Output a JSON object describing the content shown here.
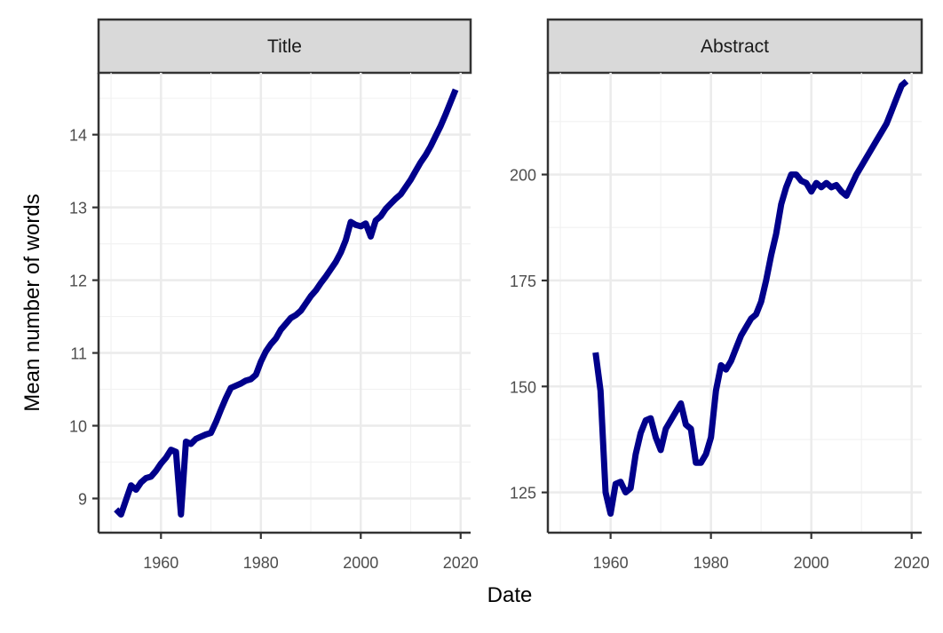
{
  "chart_data": {
    "type": "line",
    "xlabel": "Date",
    "ylabel": "Mean number of words",
    "line_color": "#00008b",
    "grid": true,
    "panels": [
      {
        "strip": "Title",
        "xlim": [
          1947.5,
          2022
        ],
        "ylim": [
          8.53,
          14.85
        ],
        "x_ticks": [
          1960,
          1980,
          2000,
          2020
        ],
        "y_ticks": [
          9,
          10,
          11,
          12,
          13,
          14
        ],
        "series": [
          {
            "x": [
              1951,
              1952,
              1953,
              1954,
              1955,
              1956,
              1957,
              1958,
              1959,
              1960,
              1961,
              1962,
              1963,
              1964,
              1965,
              1966,
              1967,
              1968,
              1969,
              1970,
              1971,
              1972,
              1973,
              1974,
              1975,
              1976,
              1977,
              1978,
              1979,
              1980,
              1981,
              1982,
              1983,
              1984,
              1985,
              1986,
              1987,
              1988,
              1989,
              1990,
              1991,
              1992,
              1993,
              1994,
              1995,
              1996,
              1997,
              1998,
              1999,
              2000,
              2001,
              2002,
              2003,
              2004,
              2005,
              2006,
              2007,
              2008,
              2009,
              2010,
              2011,
              2012,
              2013,
              2014,
              2015,
              2016,
              2017,
              2018,
              2019
            ],
            "y": [
              8.85,
              8.78,
              8.98,
              9.18,
              9.12,
              9.22,
              9.28,
              9.3,
              9.38,
              9.48,
              9.56,
              9.67,
              9.64,
              8.78,
              9.78,
              9.75,
              9.82,
              9.85,
              9.88,
              9.9,
              10.05,
              10.22,
              10.38,
              10.52,
              10.55,
              10.58,
              10.62,
              10.64,
              10.7,
              10.88,
              11.02,
              11.12,
              11.2,
              11.32,
              11.4,
              11.48,
              11.52,
              11.58,
              11.68,
              11.78,
              11.86,
              11.96,
              12.05,
              12.15,
              12.25,
              12.38,
              12.55,
              12.8,
              12.76,
              12.74,
              12.78,
              12.6,
              12.82,
              12.88,
              12.98,
              13.05,
              13.12,
              13.18,
              13.28,
              13.38,
              13.5,
              13.62,
              13.72,
              13.84,
              13.98,
              14.12,
              14.28,
              14.45,
              14.62
            ]
          }
        ]
      },
      {
        "strip": "Abstract",
        "xlim": [
          1947.5,
          2022
        ],
        "ylim": [
          115.5,
          224
        ],
        "x_ticks": [
          1960,
          1980,
          2000,
          2020
        ],
        "y_ticks": [
          125,
          150,
          175,
          200
        ],
        "series": [
          {
            "x": [
              1957,
              1958,
              1959,
              1960,
              1961,
              1962,
              1963,
              1964,
              1965,
              1966,
              1967,
              1968,
              1969,
              1970,
              1971,
              1972,
              1973,
              1974,
              1975,
              1976,
              1977,
              1978,
              1979,
              1980,
              1981,
              1982,
              1983,
              1984,
              1985,
              1986,
              1987,
              1988,
              1989,
              1990,
              1991,
              1992,
              1993,
              1994,
              1995,
              1996,
              1997,
              1998,
              1999,
              2000,
              2001,
              2002,
              2003,
              2004,
              2005,
              2006,
              2007,
              2008,
              2009,
              2010,
              2011,
              2012,
              2013,
              2014,
              2015,
              2016,
              2017,
              2018,
              2019
            ],
            "y": [
              158,
              149,
              125,
              120,
              127,
              127.5,
              125,
              126,
              134,
              139,
              142,
              142.5,
              138,
              135,
              140,
              142,
              144,
              146,
              141,
              140,
              132,
              132,
              134,
              138,
              149,
              155,
              154,
              156,
              159,
              162,
              164,
              166,
              167,
              170,
              175,
              181,
              186,
              193,
              197,
              200,
              200,
              198.5,
              198,
              196,
              198,
              197,
              198,
              197,
              197.5,
              196,
              195,
              197.5,
              200,
              202,
              204,
              206,
              208,
              210,
              212,
              215,
              218,
              221,
              222
            ]
          }
        ]
      }
    ]
  }
}
